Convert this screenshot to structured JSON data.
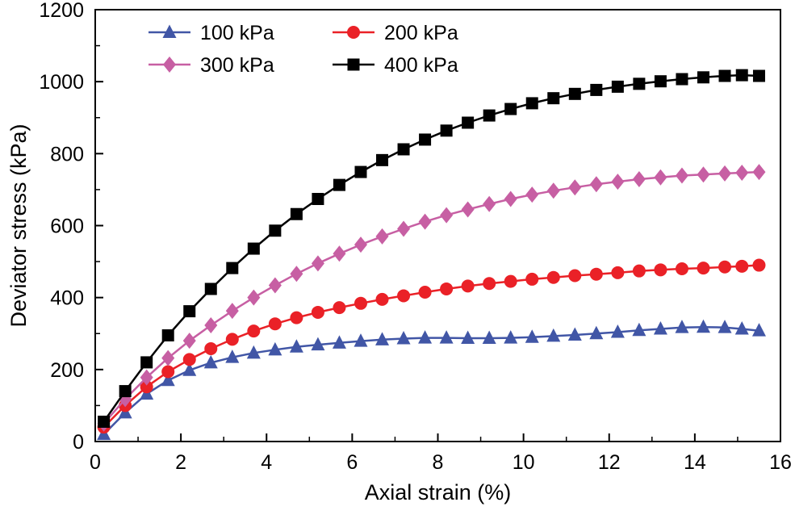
{
  "figure": {
    "background": "#ffffff",
    "frame_color": "#000000"
  },
  "chart_data": {
    "type": "line",
    "title": "",
    "xlabel": "Axial strain (%)",
    "ylabel": "Deviator stress (kPa)",
    "xlim": [
      0,
      16
    ],
    "ylim": [
      0,
      1200
    ],
    "xticks": [
      0,
      2,
      4,
      6,
      8,
      10,
      12,
      14,
      16
    ],
    "yticks": [
      0,
      200,
      400,
      600,
      800,
      1000,
      1200
    ],
    "x_minor_step": 1,
    "y_minor_step": 100,
    "grid": false,
    "legend_position": "top-left-inside",
    "x": [
      0.2,
      0.7,
      1.2,
      1.7,
      2.2,
      2.7,
      3.2,
      3.7,
      4.2,
      4.7,
      5.2,
      5.7,
      6.2,
      6.7,
      7.2,
      7.7,
      8.2,
      8.7,
      9.2,
      9.7,
      10.2,
      10.7,
      11.2,
      11.7,
      12.2,
      12.7,
      13.2,
      13.7,
      14.2,
      14.7,
      15.1,
      15.5
    ],
    "series": [
      {
        "name": "100 kPa",
        "color": "#4156a6",
        "marker": "triangle",
        "values": [
          20,
          80,
          132,
          170,
          198,
          219,
          234,
          246,
          255,
          263,
          269,
          274,
          279,
          283,
          286,
          288,
          288,
          287,
          287,
          288,
          290,
          293,
          296,
          300,
          304,
          309,
          313,
          317,
          318,
          317,
          313,
          308
        ]
      },
      {
        "name": "200 kPa",
        "color": "#ea2127",
        "marker": "circle",
        "values": [
          40,
          100,
          152,
          194,
          228,
          258,
          284,
          307,
          327,
          344,
          359,
          372,
          384,
          395,
          405,
          415,
          424,
          432,
          439,
          445,
          451,
          456,
          461,
          465,
          469,
          474,
          477,
          480,
          482,
          485,
          487,
          490
        ]
      },
      {
        "name": "300 kPa",
        "color": "#c75fa3",
        "marker": "diamond",
        "values": [
          50,
          118,
          178,
          232,
          280,
          323,
          363,
          400,
          434,
          466,
          495,
          522,
          547,
          570,
          591,
          611,
          629,
          645,
          660,
          674,
          686,
          697,
          706,
          715,
          722,
          729,
          734,
          739,
          742,
          745,
          747,
          749
        ]
      },
      {
        "name": "400 kPa",
        "color": "#000000",
        "marker": "square",
        "values": [
          55,
          140,
          220,
          295,
          362,
          424,
          482,
          536,
          586,
          632,
          674,
          713,
          749,
          782,
          812,
          839,
          864,
          886,
          906,
          924,
          940,
          954,
          966,
          977,
          986,
          994,
          1001,
          1007,
          1012,
          1016,
          1018,
          1016
        ]
      }
    ]
  }
}
